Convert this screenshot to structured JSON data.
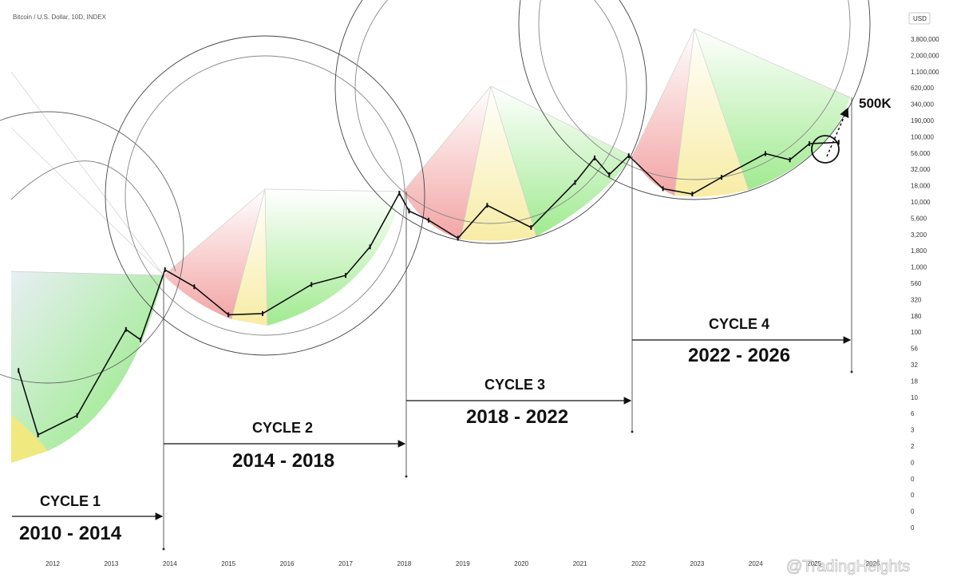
{
  "header": {
    "title": "Bitcoin / U.S. Dollar, 10D, INDEX",
    "currency": "USD"
  },
  "watermark": "@TradingHeights",
  "target_label": "500K",
  "colors": {
    "red_zone": "#ee6a6a",
    "yellow_zone": "#f4e36a",
    "green_zone": "#6fe55a",
    "candle": "#111111",
    "arc": "#444444"
  },
  "chart_data": {
    "type": "line",
    "title": "Bitcoin / U.S. Dollar, 10D, INDEX",
    "xlabel": "",
    "ylabel": "",
    "y_scale": "log",
    "x_ticks": [
      "2012",
      "2013",
      "2014",
      "2015",
      "2016",
      "2017",
      "2018",
      "2019",
      "2020",
      "2021",
      "2022",
      "2023",
      "2024",
      "2025",
      "2026"
    ],
    "y_ticks": [
      "3,800,000",
      "2,000,000",
      "1,100,000",
      "620,000",
      "340,000",
      "190,000",
      "100,000",
      "56,000",
      "32,000",
      "18,000",
      "10,000",
      "5,600",
      "3,200",
      "1,800",
      "1,000",
      "560",
      "320",
      "180",
      "100",
      "56",
      "32",
      "18",
      "10",
      "6",
      "3",
      "2",
      "0",
      "0",
      "0",
      "0",
      "0"
    ],
    "series": [
      {
        "values": [
          [
            "2011-06",
            30
          ],
          [
            "2011-10",
            3
          ],
          [
            "2012-06",
            6
          ],
          [
            "2013-04",
            130
          ],
          [
            "2013-07",
            90
          ],
          [
            "2013-12",
            1100
          ],
          [
            "2014-06",
            600
          ],
          [
            "2015-01",
            220
          ],
          [
            "2015-08",
            230
          ],
          [
            "2016-06",
            650
          ],
          [
            "2017-01",
            900
          ],
          [
            "2017-06",
            2500
          ],
          [
            "2017-12",
            17000
          ],
          [
            "2018-02",
            9000
          ],
          [
            "2018-06",
            6500
          ],
          [
            "2018-12",
            3400
          ],
          [
            "2019-06",
            11000
          ],
          [
            "2020-03",
            5000
          ],
          [
            "2020-12",
            25000
          ],
          [
            "2021-04",
            60000
          ],
          [
            "2021-07",
            33000
          ],
          [
            "2021-11",
            65000
          ],
          [
            "2022-06",
            20000
          ],
          [
            "2022-12",
            16500
          ],
          [
            "2023-06",
            30000
          ],
          [
            "2024-03",
            70000
          ],
          [
            "2024-08",
            56000
          ],
          [
            "2024-12",
            100000
          ],
          [
            "2025-06",
            105000
          ]
        ]
      }
    ],
    "cycles": [
      {
        "name": "CYCLE 1",
        "years": "2010 - 2014"
      },
      {
        "name": "CYCLE 2",
        "years": "2014 - 2018"
      },
      {
        "name": "CYCLE 3",
        "years": "2018 - 2022"
      },
      {
        "name": "CYCLE 4",
        "years": "2022 - 2026"
      }
    ],
    "projection_target": 500000,
    "grid": false,
    "legend": "none"
  }
}
